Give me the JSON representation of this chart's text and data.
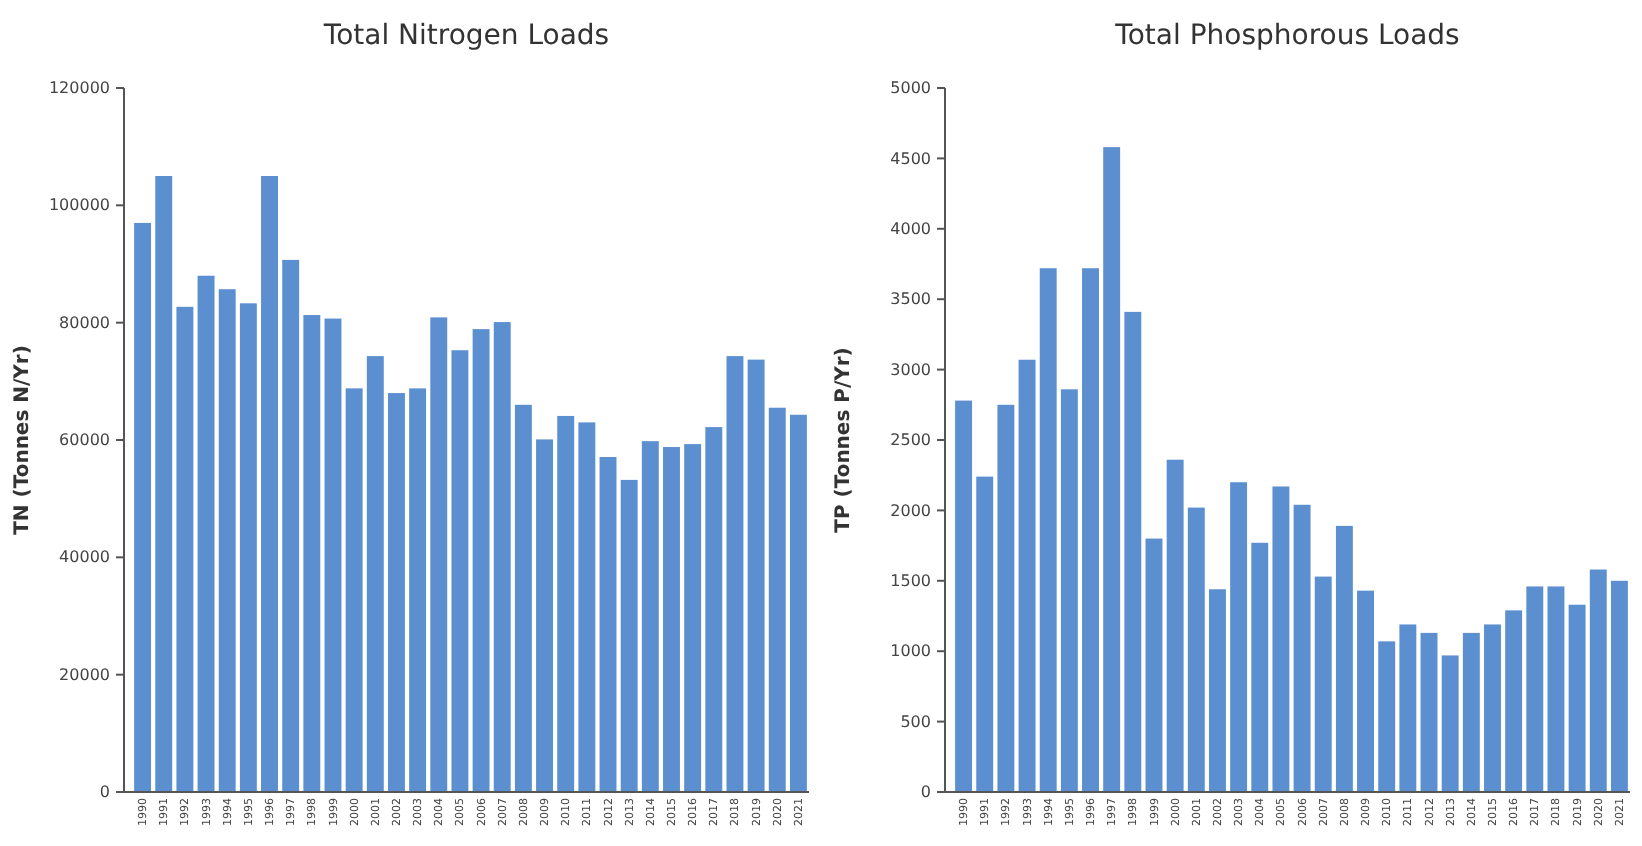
{
  "chart_data": [
    {
      "type": "bar",
      "title": "Total Nitrogen Loads",
      "ylabel": "TN (Tonnes N/Yr)",
      "categories": [
        "1990",
        "1991",
        "1992",
        "1993",
        "1994",
        "1995",
        "1996",
        "1997",
        "1998",
        "1999",
        "2000",
        "2001",
        "2002",
        "2003",
        "2004",
        "2005",
        "2006",
        "2007",
        "2008",
        "2009",
        "2010",
        "2011",
        "2012",
        "2013",
        "2014",
        "2015",
        "2016",
        "2017",
        "2018",
        "2019",
        "2020",
        "2021"
      ],
      "values": [
        97000,
        105000,
        82700,
        88000,
        85700,
        83300,
        105000,
        90700,
        81300,
        80700,
        68800,
        74300,
        68000,
        68800,
        80900,
        75300,
        78900,
        80100,
        66000,
        60100,
        64100,
        63000,
        57100,
        53200,
        59800,
        58800,
        59300,
        62200,
        74300,
        73700,
        65500,
        64300
      ],
      "color": "#5b8fd0",
      "ylim": [
        0,
        120000
      ],
      "yticks": [
        0,
        20000,
        40000,
        60000,
        80000,
        100000,
        120000
      ],
      "grid": false
    },
    {
      "type": "bar",
      "title": "Total Phosphorous Loads",
      "ylabel": "TP (Tonnes P/Yr)",
      "categories": [
        "1990",
        "1991",
        "1992",
        "1993",
        "1994",
        "1995",
        "1996",
        "1997",
        "1998",
        "1999",
        "2000",
        "2001",
        "2002",
        "2003",
        "2004",
        "2005",
        "2006",
        "2007",
        "2008",
        "2009",
        "2010",
        "2011",
        "2012",
        "2013",
        "2014",
        "2015",
        "2016",
        "2017",
        "2018",
        "2019",
        "2020",
        "2021"
      ],
      "values": [
        2780,
        2240,
        2750,
        3070,
        3720,
        2860,
        3720,
        4580,
        3410,
        1800,
        2360,
        2020,
        1440,
        2200,
        1770,
        2170,
        2040,
        1530,
        1890,
        1430,
        1070,
        1190,
        1130,
        970,
        1130,
        1190,
        1290,
        1460,
        1460,
        1330,
        1580,
        1500
      ],
      "color": "#5b8fd0",
      "ylim": [
        0,
        5000
      ],
      "yticks": [
        0,
        500,
        1000,
        1500,
        2000,
        2500,
        3000,
        3500,
        4000,
        4500,
        5000
      ],
      "grid": false
    }
  ]
}
